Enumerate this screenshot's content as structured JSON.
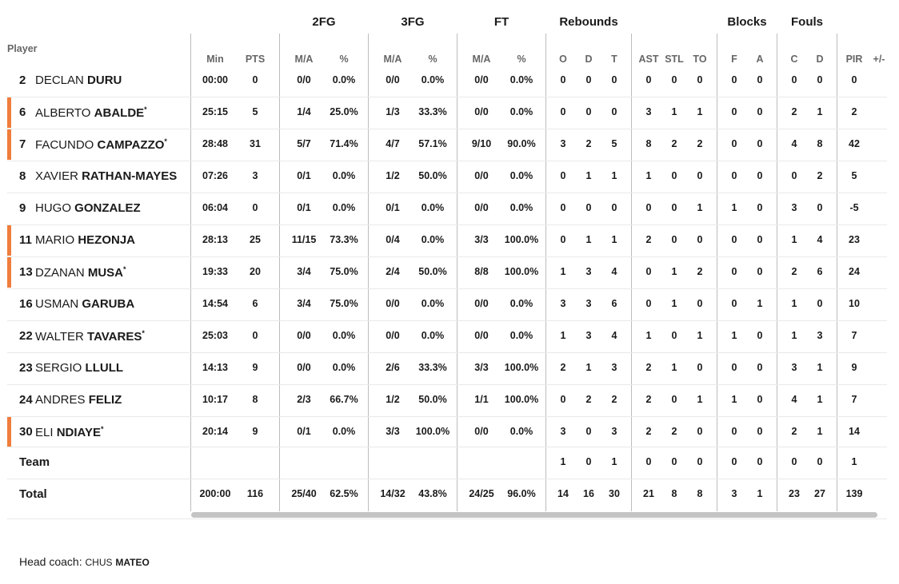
{
  "header": {
    "player_label": "Player",
    "groups": [
      "2FG",
      "3FG",
      "FT",
      "Rebounds",
      "Blocks",
      "Fouls"
    ],
    "columns": [
      "Min",
      "PTS",
      "M/A",
      "%",
      "M/A",
      "%",
      "M/A",
      "%",
      "O",
      "D",
      "T",
      "AST",
      "STL",
      "TO",
      "F",
      "A",
      "C",
      "D",
      "PIR",
      "+/-"
    ]
  },
  "players": [
    {
      "number": "2",
      "first": "DECLAN",
      "last": "DURU",
      "starter": false,
      "stats": [
        "00:00",
        "0",
        "0/0",
        "0.0%",
        "0/0",
        "0.0%",
        "0/0",
        "0.0%",
        "0",
        "0",
        "0",
        "0",
        "0",
        "0",
        "0",
        "0",
        "0",
        "0",
        "0"
      ]
    },
    {
      "number": "6",
      "first": "ALBERTO",
      "last": "ABALDE",
      "starter": true,
      "stats": [
        "25:15",
        "5",
        "1/4",
        "25.0%",
        "1/3",
        "33.3%",
        "0/0",
        "0.0%",
        "0",
        "0",
        "0",
        "3",
        "1",
        "1",
        "0",
        "0",
        "2",
        "1",
        "2"
      ]
    },
    {
      "number": "7",
      "first": "FACUNDO",
      "last": "CAMPAZZO",
      "starter": true,
      "stats": [
        "28:48",
        "31",
        "5/7",
        "71.4%",
        "4/7",
        "57.1%",
        "9/10",
        "90.0%",
        "3",
        "2",
        "5",
        "8",
        "2",
        "2",
        "0",
        "0",
        "4",
        "8",
        "42"
      ]
    },
    {
      "number": "8",
      "first": "XAVIER",
      "last": "RATHAN-MAYES",
      "starter": false,
      "stats": [
        "07:26",
        "3",
        "0/1",
        "0.0%",
        "1/2",
        "50.0%",
        "0/0",
        "0.0%",
        "0",
        "1",
        "1",
        "1",
        "0",
        "0",
        "0",
        "0",
        "0",
        "2",
        "5"
      ]
    },
    {
      "number": "9",
      "first": "HUGO",
      "last": "GONZALEZ",
      "starter": false,
      "stats": [
        "06:04",
        "0",
        "0/1",
        "0.0%",
        "0/1",
        "0.0%",
        "0/0",
        "0.0%",
        "0",
        "0",
        "0",
        "0",
        "0",
        "1",
        "1",
        "0",
        "3",
        "0",
        "-5"
      ]
    },
    {
      "number": "11",
      "first": "MARIO",
      "last": "HEZONJA",
      "starter": true,
      "stats": [
        "28:13",
        "25",
        "11/15",
        "73.3%",
        "0/4",
        "0.0%",
        "3/3",
        "100.0%",
        "0",
        "1",
        "1",
        "2",
        "0",
        "0",
        "0",
        "0",
        "1",
        "4",
        "23"
      ]
    },
    {
      "number": "13",
      "first": "DZANAN",
      "last": "MUSA",
      "starter": true,
      "stats": [
        "19:33",
        "20",
        "3/4",
        "75.0%",
        "2/4",
        "50.0%",
        "8/8",
        "100.0%",
        "1",
        "3",
        "4",
        "0",
        "1",
        "2",
        "0",
        "0",
        "2",
        "6",
        "24"
      ]
    },
    {
      "number": "16",
      "first": "USMAN",
      "last": "GARUBA",
      "starter": false,
      "stats": [
        "14:54",
        "6",
        "3/4",
        "75.0%",
        "0/0",
        "0.0%",
        "0/0",
        "0.0%",
        "3",
        "3",
        "6",
        "0",
        "1",
        "0",
        "0",
        "1",
        "1",
        "0",
        "10"
      ]
    },
    {
      "number": "22",
      "first": "WALTER",
      "last": "TAVARES",
      "starter": false,
      "stats": [
        "25:03",
        "0",
        "0/0",
        "0.0%",
        "0/0",
        "0.0%",
        "0/0",
        "0.0%",
        "1",
        "3",
        "4",
        "1",
        "0",
        "1",
        "1",
        "0",
        "1",
        "3",
        "7"
      ]
    },
    {
      "number": "23",
      "first": "SERGIO",
      "last": "LLULL",
      "starter": false,
      "stats": [
        "14:13",
        "9",
        "0/0",
        "0.0%",
        "2/6",
        "33.3%",
        "3/3",
        "100.0%",
        "2",
        "1",
        "3",
        "2",
        "1",
        "0",
        "0",
        "0",
        "3",
        "1",
        "9"
      ]
    },
    {
      "number": "24",
      "first": "ANDRES",
      "last": "FELIZ",
      "starter": false,
      "stats": [
        "10:17",
        "8",
        "2/3",
        "66.7%",
        "1/2",
        "50.0%",
        "1/1",
        "100.0%",
        "0",
        "2",
        "2",
        "2",
        "0",
        "1",
        "1",
        "0",
        "4",
        "1",
        "7"
      ]
    },
    {
      "number": "30",
      "first": "ELI",
      "last": "NDIAYE",
      "starter": true,
      "stats": [
        "20:14",
        "9",
        "0/1",
        "0.0%",
        "3/3",
        "100.0%",
        "0/0",
        "0.0%",
        "3",
        "0",
        "3",
        "2",
        "2",
        "0",
        "0",
        "0",
        "2",
        "1",
        "14"
      ]
    }
  ],
  "starred": [
    "ALBERTO ABALDE",
    "FACUNDO CAMPAZZO",
    "DZANAN MUSA",
    "WALTER TAVARES",
    "ELI NDIAYE"
  ],
  "star_symbol": "*",
  "team_row": {
    "label": "Team",
    "stats": [
      "",
      "",
      "",
      "",
      "",
      "",
      "",
      "",
      "1",
      "0",
      "1",
      "0",
      "0",
      "0",
      "0",
      "0",
      "0",
      "0",
      "1"
    ]
  },
  "total_row": {
    "label": "Total",
    "stats": [
      "200:00",
      "116",
      "25/40",
      "62.5%",
      "14/32",
      "43.8%",
      "24/25",
      "96.0%",
      "14",
      "16",
      "30",
      "21",
      "8",
      "8",
      "3",
      "1",
      "23",
      "27",
      "139"
    ]
  },
  "coach": {
    "label": "Head coach:",
    "first": "CHUS",
    "last": "MATEO"
  },
  "colors": {
    "starter_accent": "#ef7d3c",
    "divider": "#bdbdbd",
    "scrollbar": "#c4c4c4"
  }
}
